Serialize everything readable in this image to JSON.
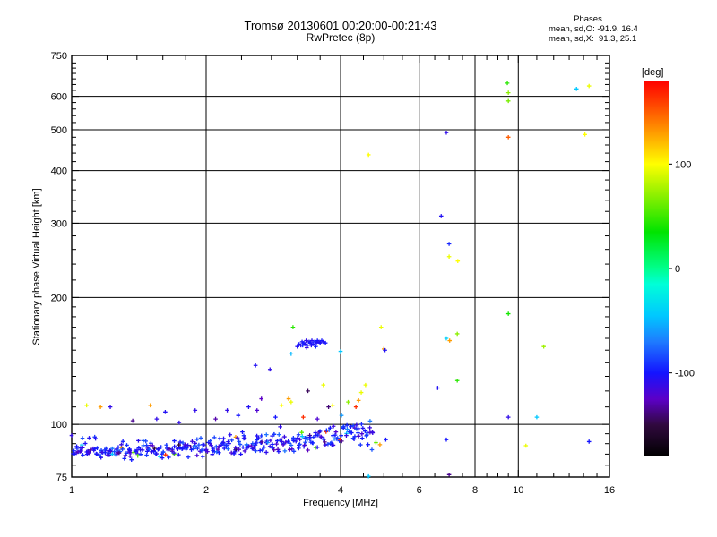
{
  "header": {
    "title": "Tromsø 20130601 00:20:00-00:21:43",
    "subtitle": "RwPretec (8p)"
  },
  "stats": {
    "header": "Phases",
    "o_line": "mean, sd,O: -91.9, 16.4",
    "x_line": "mean, sd,X:  91.3, 25.1"
  },
  "axes": {
    "x_label": "Frequency [MHz]",
    "y_label": "Stationary phase Virtual Height [km]"
  },
  "colorbar": {
    "label": "[deg]",
    "min": -180,
    "max": 180,
    "ticks": [
      100,
      0,
      -100
    ],
    "stops": [
      [
        -180,
        "#000000"
      ],
      [
        -150,
        "#30093e"
      ],
      [
        -125,
        "#5c00c8"
      ],
      [
        -100,
        "#1414ff"
      ],
      [
        -70,
        "#1e7bff"
      ],
      [
        -45,
        "#00c8ff"
      ],
      [
        -15,
        "#00ffd8"
      ],
      [
        0,
        "#00ff8c"
      ],
      [
        35,
        "#00e400"
      ],
      [
        70,
        "#8cf000"
      ],
      [
        100,
        "#ffff00"
      ],
      [
        135,
        "#ff8c00"
      ],
      [
        160,
        "#ff3c00"
      ],
      [
        180,
        "#ff0000"
      ]
    ]
  },
  "chart_data": {
    "type": "scatter",
    "title": "Tromsø 20130601 00:20:00-00:21:43",
    "subtitle": "RwPretec (8p)",
    "xlabel": "Frequency [MHz]",
    "ylabel": "Stationary phase Virtual Height [km]",
    "x_scale": "log",
    "y_scale": "log",
    "xlim": [
      1,
      16
    ],
    "ylim": [
      75,
      750
    ],
    "x_ticks": [
      1,
      2,
      4,
      6,
      8,
      10,
      16
    ],
    "y_ticks": [
      75,
      100,
      200,
      300,
      400,
      500,
      600,
      750
    ],
    "x_gridlines": [
      2,
      4,
      6,
      8,
      10
    ],
    "y_gridlines": [
      100,
      200,
      300,
      400,
      500,
      600
    ],
    "x_minor": [
      1.2,
      1.4,
      1.6,
      1.8,
      2.4,
      2.8,
      3.2,
      3.6,
      4.5,
      5,
      5.5,
      6.5,
      7,
      7.5,
      8.5,
      9,
      9.5,
      11,
      12,
      13,
      14,
      15
    ],
    "y_minor": [
      80,
      85,
      90,
      95,
      110,
      120,
      130,
      140,
      150,
      160,
      170,
      180,
      190,
      220,
      240,
      260,
      280,
      320,
      340,
      360,
      380,
      420,
      440,
      460,
      480,
      520,
      540,
      560,
      580,
      620,
      640,
      660,
      680,
      700,
      720
    ],
    "color_variable": "phase [deg]",
    "points": [
      [
        9.45,
        645,
        45
      ],
      [
        9.5,
        612,
        70
      ],
      [
        9.5,
        585,
        65
      ],
      [
        9.5,
        480,
        150
      ],
      [
        13.5,
        625,
        -45
      ],
      [
        14.4,
        635,
        95
      ],
      [
        14.1,
        487,
        100
      ],
      [
        6.9,
        492,
        -110
      ],
      [
        4.62,
        436,
        100
      ],
      [
        6.72,
        312,
        -105
      ],
      [
        7.0,
        268,
        -95
      ],
      [
        7.0,
        250,
        95
      ],
      [
        7.32,
        244,
        100
      ],
      [
        9.5,
        183,
        40
      ],
      [
        6.9,
        160,
        -40
      ],
      [
        7.02,
        158,
        130
      ],
      [
        7.3,
        164,
        70
      ],
      [
        11.4,
        153,
        75
      ],
      [
        7.3,
        127,
        45
      ],
      [
        6.6,
        122,
        -105
      ],
      [
        9.5,
        104,
        -110
      ],
      [
        11.0,
        104,
        -45
      ],
      [
        6.9,
        92,
        -100
      ],
      [
        10.4,
        89,
        95
      ],
      [
        14.4,
        91,
        -100
      ],
      [
        7.0,
        76,
        -135
      ],
      [
        4.62,
        75.3,
        -45
      ],
      [
        3.2,
        153,
        -105
      ],
      [
        3.23,
        155,
        -100
      ],
      [
        3.26,
        154,
        -108
      ],
      [
        3.28,
        157,
        -102
      ],
      [
        3.31,
        156,
        -98
      ],
      [
        3.33,
        155,
        -105
      ],
      [
        3.35,
        158,
        -110
      ],
      [
        3.37,
        154,
        -100
      ],
      [
        3.4,
        157,
        -104
      ],
      [
        3.42,
        156,
        -99
      ],
      [
        3.45,
        158,
        -106
      ],
      [
        3.47,
        155,
        -102
      ],
      [
        3.5,
        157,
        -97
      ],
      [
        3.53,
        156,
        -105
      ],
      [
        3.55,
        158,
        -100
      ],
      [
        3.58,
        157,
        -108
      ],
      [
        3.6,
        156,
        -103
      ],
      [
        3.63,
        158,
        -99
      ],
      [
        3.66,
        157,
        -105
      ],
      [
        3.7,
        156,
        -101
      ],
      [
        3.36,
        152,
        -112
      ],
      [
        3.52,
        153,
        -96
      ],
      [
        3.44,
        154,
        -107
      ],
      [
        3.29,
        154,
        -95
      ],
      [
        3.1,
        147,
        -50
      ],
      [
        4.0,
        149,
        -45
      ],
      [
        3.13,
        170,
        45
      ],
      [
        2.58,
        138,
        -105
      ],
      [
        2.78,
        135,
        -110
      ],
      [
        3.66,
        124,
        95
      ],
      [
        3.38,
        120,
        -145
      ],
      [
        3.06,
        115,
        130
      ],
      [
        2.66,
        115,
        -125
      ],
      [
        4.93,
        170,
        95
      ],
      [
        5.0,
        151,
        130
      ],
      [
        5.03,
        150,
        -105
      ],
      [
        4.55,
        124,
        95
      ],
      [
        4.45,
        119,
        95
      ],
      [
        4.33,
        110,
        165
      ],
      [
        1.08,
        111,
        95
      ],
      [
        1.16,
        110,
        130
      ],
      [
        1.22,
        110,
        -110
      ],
      [
        1.37,
        102,
        -135
      ],
      [
        1.5,
        111,
        130
      ],
      [
        1.55,
        103,
        -110
      ],
      [
        1.62,
        107,
        -105
      ],
      [
        1.74,
        101,
        -110
      ],
      [
        1.89,
        108,
        -110
      ],
      [
        2.1,
        103,
        -130
      ],
      [
        2.23,
        108,
        -110
      ],
      [
        2.36,
        105,
        -100
      ],
      [
        2.49,
        110,
        -105
      ],
      [
        2.6,
        108,
        -120
      ],
      [
        2.86,
        104,
        -100
      ],
      [
        2.95,
        111,
        100
      ],
      [
        3.1,
        113,
        95
      ],
      [
        3.3,
        104,
        165
      ],
      [
        3.55,
        103,
        -120
      ],
      [
        3.76,
        110,
        -140
      ],
      [
        3.84,
        111,
        100
      ],
      [
        4.02,
        105,
        -60
      ],
      [
        4.16,
        113,
        70
      ],
      [
        4.39,
        114,
        130
      ],
      [
        4.8,
        90.5,
        60
      ],
      [
        4.9,
        89.5,
        130
      ],
      [
        5.05,
        92,
        -100
      ]
    ],
    "band": {
      "name": "E-region dense echo trace",
      "count": 360,
      "f_start": 1.0,
      "f_end": 4.72,
      "profile": [
        [
          1.0,
          86.5
        ],
        [
          1.15,
          85.8
        ],
        [
          1.3,
          86.2
        ],
        [
          1.5,
          87.0
        ],
        [
          1.8,
          88.0
        ],
        [
          2.0,
          88.8
        ],
        [
          2.3,
          89.5
        ],
        [
          2.6,
          90.2
        ],
        [
          3.0,
          91.0
        ],
        [
          3.4,
          91.8
        ],
        [
          3.8,
          93.0
        ],
        [
          4.2,
          94.5
        ],
        [
          4.5,
          95.5
        ],
        [
          4.72,
          94.0
        ]
      ],
      "height_sigma_start": 1.3,
      "height_sigma_end": 3.2,
      "fringe_fraction": 0.06,
      "fringe_lift_km": 6,
      "phase_mean": -100,
      "phase_sigma": 14,
      "outlier_fraction": 0.07,
      "outlier_phases": [
        -150,
        -135,
        165,
        130,
        100,
        60,
        -45
      ],
      "seed": 7
    }
  }
}
